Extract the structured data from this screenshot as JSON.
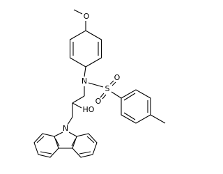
{
  "atoms": [
    {
      "label": "O"
    },
    {
      "label": "N"
    },
    {
      "label": "S"
    },
    {
      "label": "O"
    },
    {
      "label": "O"
    },
    {
      "label": "HO"
    },
    {
      "label": "N"
    }
  ]
}
